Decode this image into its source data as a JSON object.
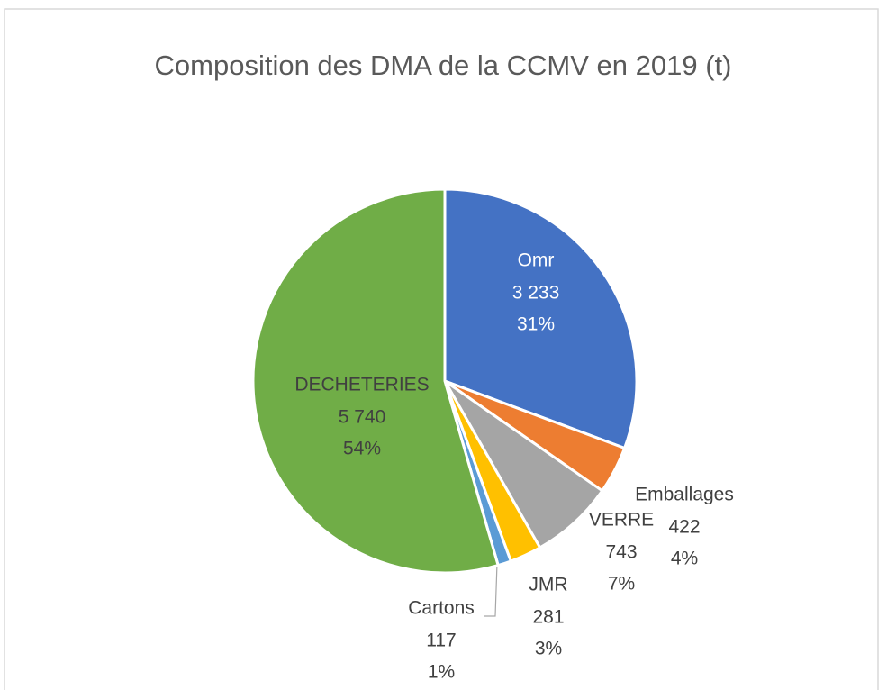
{
  "chart_data": {
    "type": "pie",
    "title": "Composition des DMA de la CCMV en 2019 (t)",
    "categories": [
      "Omr",
      "Emballages",
      "VERRE",
      "JMR",
      "Cartons",
      "DECHETERIES"
    ],
    "values": [
      3233,
      422,
      743,
      281,
      117,
      5740
    ],
    "value_labels": [
      "3 233",
      "422",
      "743",
      "281",
      "117",
      "5 740"
    ],
    "percent_labels": [
      "31%",
      "4%",
      "7%",
      "3%",
      "1%",
      "54%"
    ],
    "colors": [
      "#4472c4",
      "#ed7d31",
      "#a5a5a5",
      "#ffc000",
      "#5b9bd5",
      "#70ad47"
    ]
  }
}
